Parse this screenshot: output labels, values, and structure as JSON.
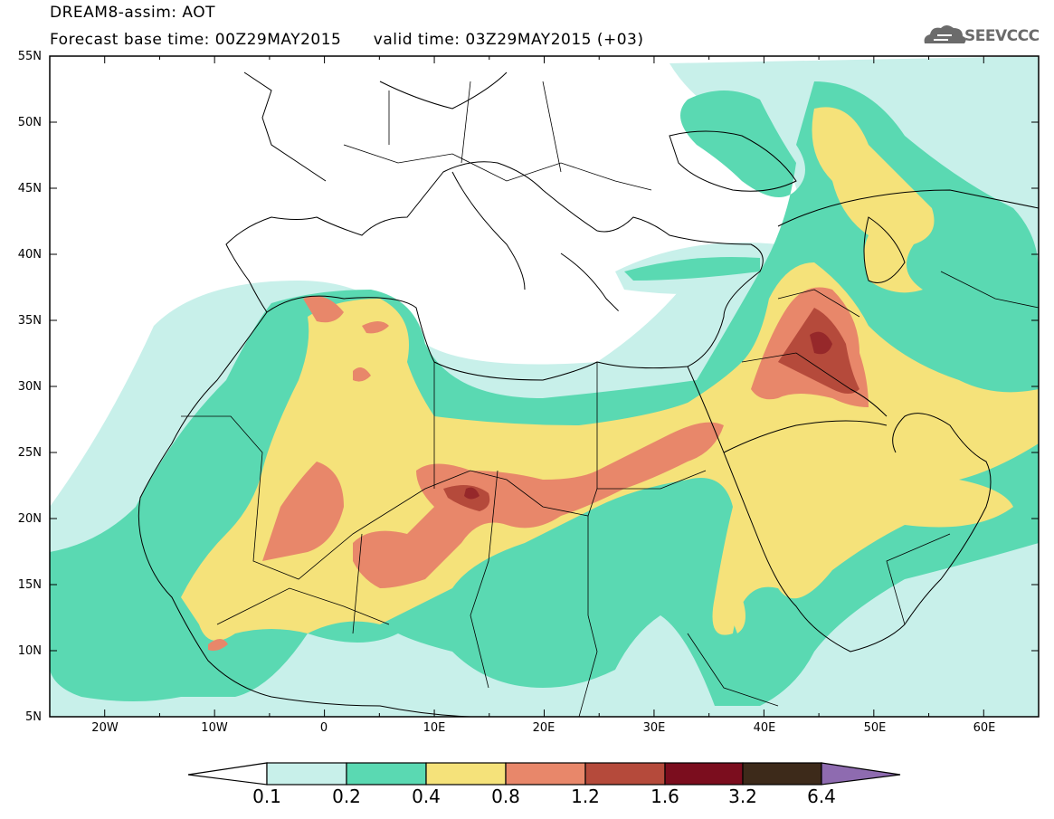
{
  "title": {
    "line1": "DREAM8-assim: AOT",
    "line2": "Forecast base time: 00Z29MAY2015      valid time: 03Z29MAY2015 (+03)"
  },
  "logo": {
    "text": "SEEVCCC",
    "icon": "cloud-logo-icon"
  },
  "axes": {
    "lat_labels": [
      "55N",
      "50N",
      "45N",
      "40N",
      "35N",
      "30N",
      "25N",
      "20N",
      "15N",
      "10N",
      "5N"
    ],
    "lon_labels": [
      "20W",
      "10W",
      "0",
      "10E",
      "20E",
      "30E",
      "40E",
      "50E",
      "60E"
    ],
    "lat_range": [
      5,
      55
    ],
    "lon_range": [
      -25,
      65
    ]
  },
  "colorbar": {
    "labels": [
      "0.1",
      "0.2",
      "0.4",
      "0.8",
      "1.2",
      "1.6",
      "3.2",
      "6.4"
    ],
    "colors": [
      "#ffffff",
      "#c8f0ea",
      "#5ad9b2",
      "#f5e27a",
      "#e8876a",
      "#b54a3b",
      "#7b0d1e",
      "#3d2a1a",
      "#8e6bb0"
    ]
  },
  "colors": {
    "aot_0_1": "#c8f0ea",
    "aot_0_2": "#5ad9b2",
    "aot_0_4": "#f5e27a",
    "aot_0_8": "#e8876a",
    "aot_1_2": "#b54a3b",
    "aot_1_6": "#7b0d1e"
  }
}
